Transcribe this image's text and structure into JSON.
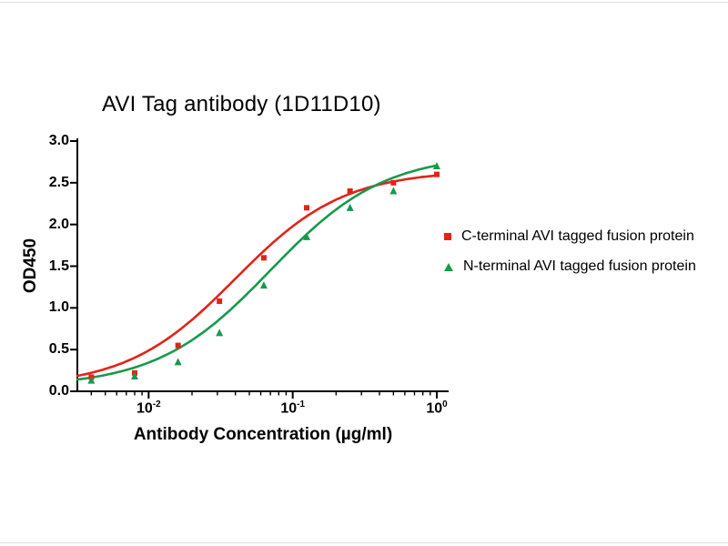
{
  "chart_data": {
    "type": "scatter",
    "title": "AVI Tag antibody (1D11D10)",
    "xlabel": "Antibody Concentration (µg/ml)",
    "ylabel": "OD450",
    "x_scale": "log",
    "xlim": [
      0.0032,
      1.0
    ],
    "ylim": [
      0.0,
      3.0
    ],
    "yticks": [
      0.0,
      0.5,
      1.0,
      1.5,
      2.0,
      2.5,
      3.0
    ],
    "ytick_labels": [
      "0.0",
      "0.5",
      "1.0",
      "1.5",
      "2.0",
      "2.5",
      "3.0"
    ],
    "xticks": [
      0.01,
      0.1,
      1.0
    ],
    "xtick_labels": [
      {
        "base": "10",
        "exp": "-2"
      },
      {
        "base": "10",
        "exp": "-1"
      },
      {
        "base": "10",
        "exp": "0"
      }
    ],
    "x": [
      0.004,
      0.008,
      0.016,
      0.031,
      0.063,
      0.125,
      0.25,
      0.5,
      1.0
    ],
    "series": [
      {
        "name": "C-terminal AVI tagged fusion protein",
        "color": "#e2231a",
        "marker": "square",
        "values": [
          0.17,
          0.22,
          0.55,
          1.08,
          1.6,
          2.2,
          2.4,
          2.5,
          2.6
        ],
        "fit": {
          "bottom": 0.05,
          "top": 2.65,
          "ec50": 0.04,
          "hill": 1.15
        }
      },
      {
        "name": "N-terminal AVI tagged fusion protein",
        "color": "#169a4b",
        "marker": "triangle",
        "values": [
          0.13,
          0.18,
          0.35,
          0.7,
          1.27,
          1.85,
          2.2,
          2.4,
          2.7
        ],
        "fit": {
          "bottom": 0.05,
          "top": 2.85,
          "ec50": 0.07,
          "hill": 1.1
        }
      }
    ],
    "legend_position": "right",
    "grid": "off"
  }
}
